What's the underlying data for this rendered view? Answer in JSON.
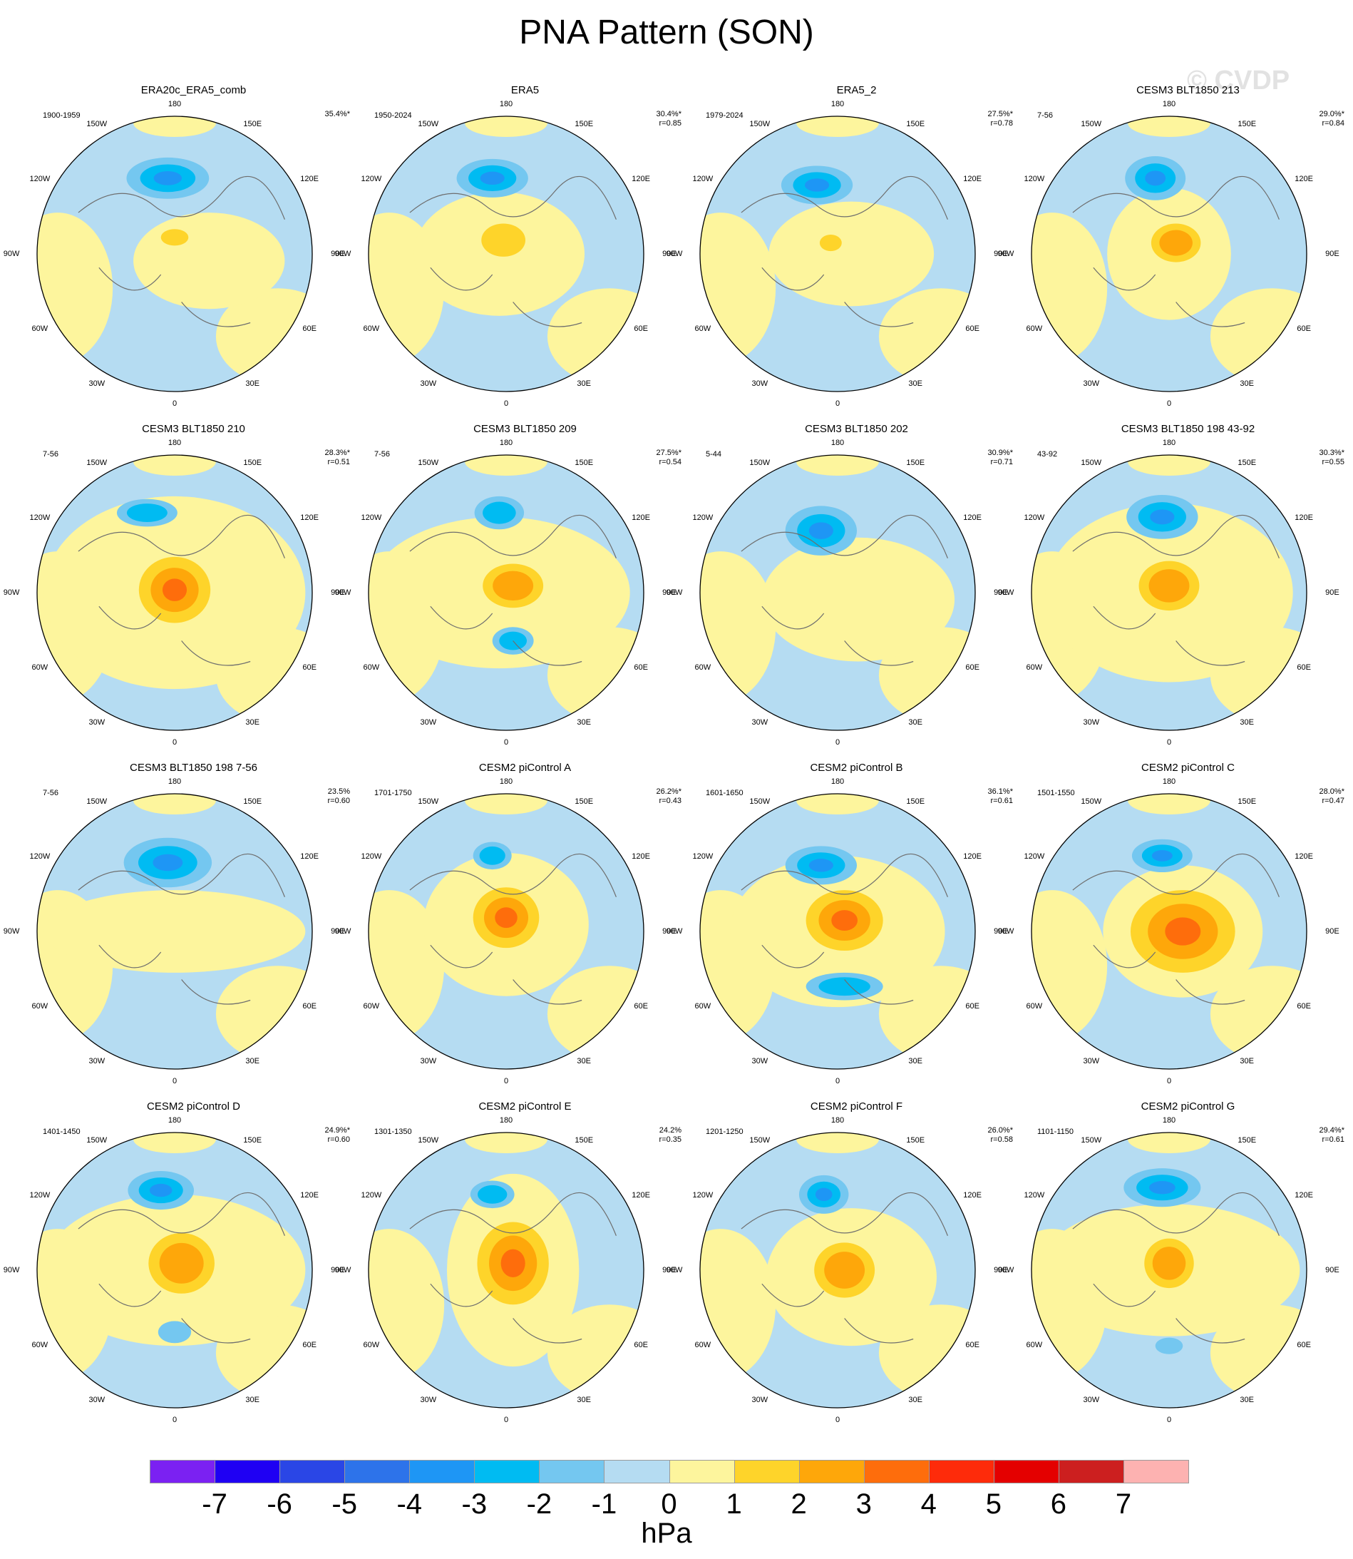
{
  "title": "PNA Pattern (SON)",
  "watermark": "© CVDP",
  "units": "hPa",
  "colorbar": {
    "ticks": [
      "-7",
      "-6",
      "-5",
      "-4",
      "-3",
      "-2",
      "-1",
      "0",
      "1",
      "2",
      "3",
      "4",
      "5",
      "6",
      "7"
    ],
    "colors": [
      "#7b21f2",
      "#1f00f3",
      "#2a46e6",
      "#2d73ea",
      "#1e96f5",
      "#00bbf2",
      "#74c7f0",
      "#b5dcf2",
      "#fdf59d",
      "#fed42a",
      "#fea70a",
      "#fe6d0c",
      "#fe2b0a",
      "#e40000",
      "#cc1f1f",
      "#fdb2b1"
    ]
  },
  "map_labels": {
    "top": "180",
    "bottom": "0",
    "upper_left": "150W",
    "upper_right": "150E",
    "mid_upper_left": "120W",
    "mid_upper_right": "120E",
    "mid_left": "90W",
    "mid_right": "90E",
    "mid_lower_left": "60W",
    "mid_lower_right": "60E",
    "lower_left": "30W",
    "lower_right": "30E"
  },
  "panels": [
    {
      "title": "ERA20c_ERA5_comb",
      "years": "1900-1959",
      "pct": "35.4%*",
      "r": ""
    },
    {
      "title": "ERA5",
      "years": "1950-2024",
      "pct": "30.4%*",
      "r": "r=0.85"
    },
    {
      "title": "ERA5_2",
      "years": "1979-2024",
      "pct": "27.5%*",
      "r": "r=0.78"
    },
    {
      "title": "CESM3 BLT1850 213",
      "years": "7-56",
      "pct": "29.0%*",
      "r": "r=0.84"
    },
    {
      "title": "CESM3 BLT1850 210",
      "years": "7-56",
      "pct": "28.3%*",
      "r": "r=0.51"
    },
    {
      "title": "CESM3 BLT1850 209",
      "years": "7-56",
      "pct": "27.5%*",
      "r": "r=0.54"
    },
    {
      "title": "CESM3 BLT1850 202",
      "years": "5-44",
      "pct": "30.9%*",
      "r": "r=0.71"
    },
    {
      "title": "CESM3 BLT1850 198 43-92",
      "years": "43-92",
      "pct": "30.3%*",
      "r": "r=0.55"
    },
    {
      "title": "CESM3 BLT1850 198 7-56",
      "years": "7-56",
      "pct": "23.5%",
      "r": "r=0.60"
    },
    {
      "title": "CESM2 piControl A",
      "years": "1701-1750",
      "pct": "26.2%*",
      "r": "r=0.43"
    },
    {
      "title": "CESM2 piControl B",
      "years": "1601-1650",
      "pct": "36.1%*",
      "r": "r=0.61"
    },
    {
      "title": "CESM2 piControl C",
      "years": "1501-1550",
      "pct": "28.0%*",
      "r": "r=0.47"
    },
    {
      "title": "CESM2 piControl D",
      "years": "1401-1450",
      "pct": "24.9%*",
      "r": "r=0.60"
    },
    {
      "title": "CESM2 piControl E",
      "years": "1301-1350",
      "pct": "24.2%",
      "r": "r=0.35"
    },
    {
      "title": "CESM2 piControl F",
      "years": "1201-1250",
      "pct": "26.0%*",
      "r": "r=0.58"
    },
    {
      "title": "CESM2 piControl G",
      "years": "1101-1150",
      "pct": "29.4%*",
      "r": "r=0.61"
    }
  ]
}
